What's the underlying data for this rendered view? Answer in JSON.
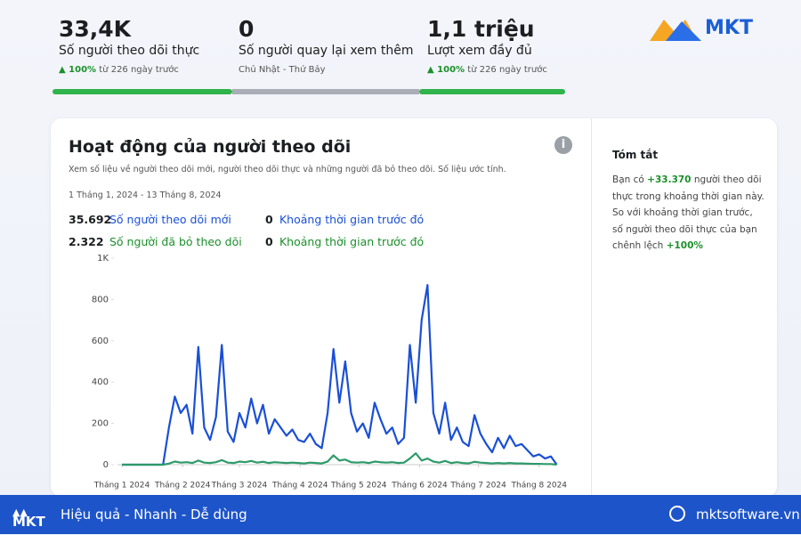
{
  "stats": [
    {
      "value": "33,4K",
      "label": "Số người theo dõi thực",
      "change": "100%",
      "note": "từ 226 ngày trước"
    },
    {
      "value": "0",
      "label": "Số người quay lại xem thêm",
      "note": "Chủ Nhật - Thứ Bảy"
    },
    {
      "value": "1,1 triệu",
      "label": "Lượt xem đầy đủ",
      "change": "100%",
      "note": "từ 226 ngày trước"
    }
  ],
  "logo": "MKT",
  "card": {
    "title": "Hoạt động của người theo dõi",
    "description": "Xem số liệu về người theo dõi mới, người theo dõi thực và những người đã bỏ theo dõi. Số liệu ước tính.",
    "date_range": "1 Tháng 1, 2024 - 13 Tháng 8, 2024",
    "metrics": [
      {
        "value": "35.692",
        "label": "Số người theo dõi mới",
        "prev_value": "0",
        "prev_label": "Khoảng thời gian trước đó"
      },
      {
        "value": "2.322",
        "label": "Số người đã bỏ theo dõi",
        "prev_value": "0",
        "prev_label": "Khoảng thời gian trước đó"
      }
    ]
  },
  "chart_data": {
    "type": "line",
    "x": [
      0,
      3,
      6,
      9,
      12,
      15,
      18,
      21,
      24,
      27,
      30,
      33,
      36,
      39,
      42,
      45,
      48,
      51,
      54,
      57,
      60,
      63,
      66,
      69,
      72,
      75,
      78,
      81,
      84,
      87,
      90,
      93,
      96,
      99,
      102,
      105,
      108,
      111,
      114,
      117,
      120,
      123,
      126,
      129,
      132,
      135,
      138,
      141,
      144,
      147,
      150,
      153,
      156,
      159,
      162,
      165,
      168,
      171,
      174,
      177,
      180,
      183,
      186,
      189,
      192,
      195,
      198,
      201,
      204,
      207,
      210,
      213,
      216,
      219,
      222
    ],
    "series": [
      {
        "name": "Số người theo dõi mới",
        "color": "#1a4fd6",
        "values": [
          0,
          0,
          0,
          0,
          0,
          0,
          0,
          0,
          180,
          330,
          250,
          290,
          150,
          570,
          180,
          120,
          230,
          580,
          160,
          110,
          250,
          180,
          320,
          200,
          290,
          150,
          220,
          180,
          140,
          170,
          120,
          110,
          150,
          100,
          80,
          250,
          560,
          300,
          500,
          250,
          160,
          200,
          130,
          300,
          220,
          150,
          180,
          100,
          130,
          580,
          300,
          700,
          870,
          250,
          150,
          300,
          120,
          180,
          110,
          90,
          240,
          150,
          100,
          60,
          130,
          80,
          140,
          90,
          100,
          70,
          40,
          50,
          30,
          40,
          0
        ]
      },
      {
        "name": "Số người đã bỏ theo dõi",
        "color": "#2e9a6a",
        "values": [
          0,
          0,
          0,
          0,
          0,
          0,
          0,
          0,
          5,
          15,
          10,
          12,
          8,
          20,
          10,
          8,
          12,
          22,
          10,
          8,
          15,
          12,
          18,
          10,
          14,
          8,
          12,
          10,
          8,
          10,
          8,
          6,
          10,
          8,
          6,
          15,
          45,
          20,
          25,
          12,
          10,
          12,
          8,
          15,
          12,
          10,
          12,
          8,
          10,
          30,
          55,
          20,
          30,
          15,
          10,
          18,
          8,
          12,
          8,
          6,
          14,
          10,
          8,
          6,
          8,
          6,
          8,
          6,
          6,
          5,
          4,
          4,
          3,
          3,
          0
        ]
      }
    ],
    "xlim": [
      0,
      224
    ],
    "xticks": [
      {
        "value": 0,
        "label": "Tháng 1 2024"
      },
      {
        "value": 31,
        "label": "Tháng 2 2024"
      },
      {
        "value": 60,
        "label": "Tháng 3 2024"
      },
      {
        "value": 91,
        "label": "Tháng 4 2024"
      },
      {
        "value": 121,
        "label": "Tháng 5 2024"
      },
      {
        "value": 152,
        "label": "Tháng 6 2024"
      },
      {
        "value": 182,
        "label": "Tháng 7 2024"
      },
      {
        "value": 213,
        "label": "Tháng 8 2024"
      }
    ],
    "ylim": [
      0,
      1000
    ],
    "yticks": [
      0,
      200,
      400,
      600,
      800,
      {
        "value": 1000,
        "label": "1K"
      }
    ]
  },
  "summary": {
    "title": "Tóm tắt",
    "parts": [
      "Bạn có",
      "+33.370",
      "người theo dõi thực trong khoảng thời gian này. So với khoảng thời gian trước, số người theo dõi thực của bạn chênh lệch",
      "+100%"
    ]
  },
  "footer": {
    "logo": "MKT",
    "slogan": "Hiệu quả - Nhanh - Dễ dùng",
    "website": "mktsoftware.vn"
  }
}
